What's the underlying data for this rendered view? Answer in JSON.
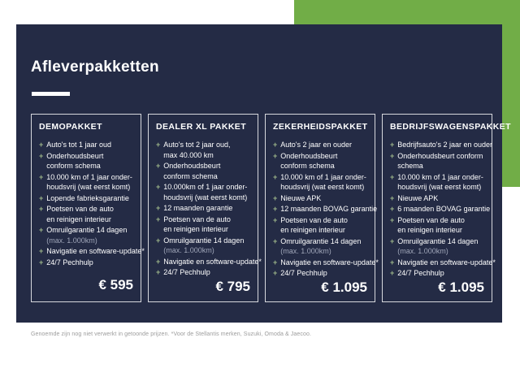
{
  "title": "Afleverpakketten",
  "icons": {
    "plus": "+"
  },
  "colors": {
    "accent_green": "#71AD47",
    "panel_navy": "#242B45",
    "text_white": "#ffffff",
    "dim_text": "#9FA5B8",
    "footnote_gray": "#9C9C9C"
  },
  "packages": [
    {
      "name": "DEMOPAKKET",
      "features": [
        {
          "lines": [
            "Auto's tot 1 jaar oud"
          ]
        },
        {
          "lines": [
            "Onderhoudsbeurt",
            "conform schema"
          ]
        },
        {
          "lines": [
            "10.000 km of 1 jaar onder-",
            "houdsvrij (wat eerst komt)"
          ]
        },
        {
          "lines": [
            "Lopende fabrieksgarantie"
          ]
        },
        {
          "lines": [
            "Poetsen van de auto",
            "en reinigen interieur"
          ]
        },
        {
          "lines": [
            "Omruilgarantie 14 dagen",
            {
              "t": "(max. 1.000km)",
              "dim": true
            }
          ]
        },
        {
          "lines": [
            "Navigatie en software-update*"
          ]
        },
        {
          "lines": [
            "24/7 Pechhulp"
          ]
        }
      ],
      "price": "€ 595"
    },
    {
      "name": "DEALER XL PAKKET",
      "features": [
        {
          "lines": [
            "Auto's tot 2 jaar oud,",
            "max 40.000 km"
          ]
        },
        {
          "lines": [
            "Onderhoudsbeurt",
            "conform schema"
          ]
        },
        {
          "lines": [
            "10.000km of 1 jaar onder-",
            "houdsvrij (wat eerst komt)"
          ]
        },
        {
          "lines": [
            "12 maanden garantie"
          ]
        },
        {
          "lines": [
            "Poetsen van de auto",
            "en reinigen interieur"
          ]
        },
        {
          "lines": [
            "Omruilgarantie 14 dagen",
            {
              "t": "(max. 1.000km)",
              "dim": true
            }
          ]
        },
        {
          "lines": [
            "Navigatie en software-update*"
          ]
        },
        {
          "lines": [
            "24/7 Pechhulp"
          ]
        }
      ],
      "price": "€ 795"
    },
    {
      "name": "ZEKERHEIDSPAKKET",
      "features": [
        {
          "lines": [
            "Auto's 2 jaar en ouder"
          ]
        },
        {
          "lines": [
            "Onderhoudsbeurt",
            "conform schema"
          ]
        },
        {
          "lines": [
            "10.000 km of 1 jaar onder-",
            "houdsvrij (wat eerst komt)"
          ]
        },
        {
          "lines": [
            "Nieuwe APK"
          ]
        },
        {
          "lines": [
            "12 maanden BOVAG garantie"
          ]
        },
        {
          "lines": [
            "Poetsen van de auto",
            "en reinigen interieur"
          ]
        },
        {
          "lines": [
            "Omruilgarantie 14 dagen",
            {
              "t": "(max. 1.000km)",
              "dim": true
            }
          ]
        },
        {
          "lines": [
            "Navigatie en software-update*"
          ]
        },
        {
          "lines": [
            "24/7 Pechhulp"
          ]
        }
      ],
      "price": "€ 1.095"
    },
    {
      "name": "BEDRIJFSWAGENSPAKKET",
      "features": [
        {
          "lines": [
            "Bedrijfsauto's 2 jaar en ouder"
          ]
        },
        {
          "lines": [
            "Onderhoudsbeurt conform",
            "schema"
          ]
        },
        {
          "lines": [
            "10.000 km of 1 jaar onder-",
            "houdsvrij (wat eerst komt)"
          ]
        },
        {
          "lines": [
            "Nieuwe APK"
          ]
        },
        {
          "lines": [
            "6 maanden BOVAG garantie"
          ]
        },
        {
          "lines": [
            "Poetsen van de auto",
            "en reinigen interieur"
          ]
        },
        {
          "lines": [
            "Omruilgarantie 14 dagen",
            {
              "t": "(max. 1.000km)",
              "dim": true
            }
          ]
        },
        {
          "lines": [
            "Navigatie en software-update*"
          ]
        },
        {
          "lines": [
            "24/7 Pechhulp"
          ]
        }
      ],
      "price": "€ 1.095"
    }
  ],
  "footnote": "Genoemde zijn nog niet verwerkt in getoonde prijzen. *Voor de Stellantis merken, Suzuki, Omoda & Jaecoo."
}
